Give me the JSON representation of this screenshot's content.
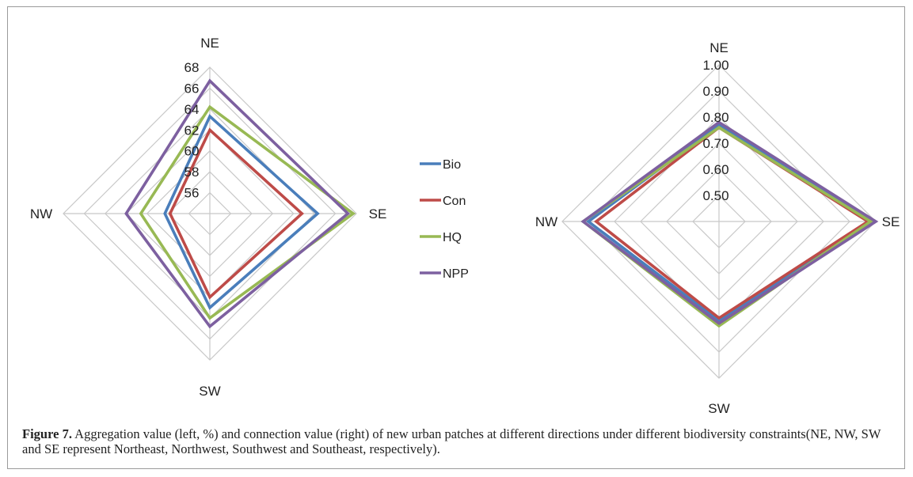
{
  "chart_data": [
    {
      "type": "radar",
      "directions": [
        "NE",
        "SE",
        "SW",
        "NW"
      ],
      "rmin": 54,
      "rmax": 68,
      "ticks": [
        "56",
        "58",
        "60",
        "62",
        "64",
        "66",
        "68"
      ],
      "tick_values": [
        56,
        58,
        60,
        62,
        64,
        66,
        68
      ],
      "series": [
        {
          "name": "Bio",
          "values": [
            63.3,
            64.3,
            63.0,
            58.3
          ]
        },
        {
          "name": "Con",
          "values": [
            62.0,
            62.8,
            62.0,
            57.8
          ]
        },
        {
          "name": "HQ",
          "values": [
            64.2,
            67.7,
            64.0,
            60.6
          ]
        },
        {
          "name": "NPP",
          "values": [
            66.7,
            67.2,
            64.8,
            62.0
          ]
        }
      ]
    },
    {
      "type": "radar",
      "directions": [
        "NE",
        "SE",
        "SW",
        "NW"
      ],
      "rmin": 0.4,
      "rmax": 1.0,
      "ticks": [
        "0.50",
        "0.60",
        "0.70",
        "0.80",
        "0.90",
        "1.00"
      ],
      "tick_values": [
        0.5,
        0.6,
        0.7,
        0.8,
        0.9,
        1.0
      ],
      "series": [
        {
          "name": "Bio",
          "values": [
            0.77,
            0.99,
            0.78,
            0.9
          ]
        },
        {
          "name": "Con",
          "values": [
            0.76,
            0.97,
            0.77,
            0.87
          ]
        },
        {
          "name": "HQ",
          "values": [
            0.76,
            0.98,
            0.8,
            0.92
          ]
        },
        {
          "name": "NPP",
          "values": [
            0.78,
            1.0,
            0.79,
            0.92
          ]
        }
      ]
    }
  ],
  "legend": [
    "Bio",
    "Con",
    "HQ",
    "NPP"
  ],
  "colors": {
    "Bio": "#4a7ebb",
    "Con": "#be4b48",
    "HQ": "#98b954",
    "NPP": "#7d60a0",
    "grid": "#c8c8c8"
  },
  "caption": {
    "label": "Figure 7.",
    "text": " Aggregation value (left, %) and connection value (right) of new urban patches at different directions under different biodiversity constraints(NE, NW, SW and SE represent Northeast, Northwest, Southwest and Southeast, respectively)."
  }
}
